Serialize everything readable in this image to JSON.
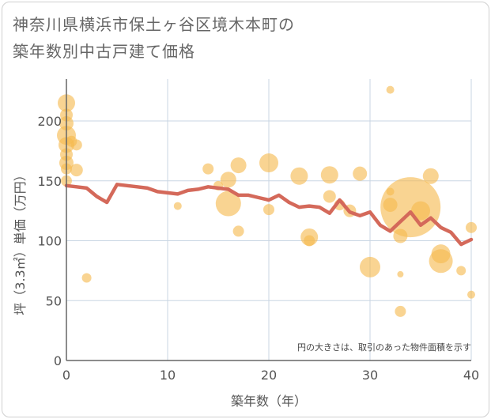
{
  "title_line1": "神奈川県横浜市保土ヶ谷区境木本町の",
  "title_line2": "築年数別中古戸建て価格",
  "chart_data": {
    "type": "scatter",
    "title": "神奈川県横浜市保土ヶ谷区境木本町の築年数別中古戸建て価格",
    "xlabel": "築年数（年）",
    "ylabel": "坪（3.3㎡）単価（万円）",
    "xlim": [
      0,
      40
    ],
    "ylim": [
      0,
      235
    ],
    "xticks": [
      0,
      10,
      20,
      30,
      40
    ],
    "yticks": [
      0,
      50,
      100,
      150,
      200
    ],
    "note": "円の大きさは、取引のあった物件面積を示す",
    "bubble_color": "#f5b94f",
    "line_color": "#d4695a",
    "bubbles": [
      {
        "x": 0,
        "y": 215,
        "s": 11
      },
      {
        "x": 0,
        "y": 205,
        "s": 8
      },
      {
        "x": 0,
        "y": 198,
        "s": 9
      },
      {
        "x": 0,
        "y": 188,
        "s": 12
      },
      {
        "x": 0,
        "y": 180,
        "s": 10
      },
      {
        "x": 0,
        "y": 172,
        "s": 8
      },
      {
        "x": 0,
        "y": 165,
        "s": 9
      },
      {
        "x": 0,
        "y": 160,
        "s": 7
      },
      {
        "x": 0,
        "y": 150,
        "s": 7
      },
      {
        "x": 0.5,
        "y": 183,
        "s": 7
      },
      {
        "x": 1,
        "y": 180,
        "s": 7
      },
      {
        "x": 1,
        "y": 159,
        "s": 8
      },
      {
        "x": 2,
        "y": 69,
        "s": 6
      },
      {
        "x": 11,
        "y": 129,
        "s": 5
      },
      {
        "x": 14,
        "y": 160,
        "s": 7
      },
      {
        "x": 15,
        "y": 146,
        "s": 6
      },
      {
        "x": 16,
        "y": 151,
        "s": 10
      },
      {
        "x": 16,
        "y": 131,
        "s": 16
      },
      {
        "x": 17,
        "y": 163,
        "s": 10
      },
      {
        "x": 17,
        "y": 108,
        "s": 7
      },
      {
        "x": 20,
        "y": 165,
        "s": 12
      },
      {
        "x": 20,
        "y": 126,
        "s": 7
      },
      {
        "x": 23,
        "y": 154,
        "s": 11
      },
      {
        "x": 24,
        "y": 103,
        "s": 11
      },
      {
        "x": 24,
        "y": 100,
        "s": 7
      },
      {
        "x": 26,
        "y": 155,
        "s": 11
      },
      {
        "x": 26,
        "y": 137,
        "s": 8
      },
      {
        "x": 27,
        "y": 130,
        "s": 7
      },
      {
        "x": 28,
        "y": 125,
        "s": 8
      },
      {
        "x": 29,
        "y": 156,
        "s": 9
      },
      {
        "x": 30,
        "y": 78,
        "s": 13
      },
      {
        "x": 32,
        "y": 226,
        "s": 5
      },
      {
        "x": 32,
        "y": 141,
        "s": 5
      },
      {
        "x": 32,
        "y": 130,
        "s": 9
      },
      {
        "x": 33,
        "y": 104,
        "s": 9
      },
      {
        "x": 33,
        "y": 72,
        "s": 4
      },
      {
        "x": 33,
        "y": 41,
        "s": 7
      },
      {
        "x": 34,
        "y": 128,
        "s": 38
      },
      {
        "x": 35,
        "y": 125,
        "s": 12
      },
      {
        "x": 36,
        "y": 154,
        "s": 10
      },
      {
        "x": 37,
        "y": 89,
        "s": 12
      },
      {
        "x": 37,
        "y": 83,
        "s": 15
      },
      {
        "x": 39,
        "y": 75,
        "s": 6
      },
      {
        "x": 40,
        "y": 111,
        "s": 7
      },
      {
        "x": 40,
        "y": 55,
        "s": 5
      }
    ],
    "line_x": [
      0,
      1,
      2,
      3,
      4,
      5,
      6,
      7,
      8,
      9,
      10,
      11,
      12,
      13,
      14,
      15,
      16,
      17,
      18,
      19,
      20,
      21,
      22,
      23,
      24,
      25,
      26,
      27,
      28,
      29,
      30,
      31,
      32,
      33,
      34,
      35,
      36,
      37,
      38,
      39,
      40
    ],
    "line_y": [
      146,
      145,
      144,
      137,
      132,
      147,
      146,
      145,
      144,
      141,
      140,
      139,
      142,
      143,
      145,
      144,
      143,
      138,
      138,
      136,
      134,
      138,
      132,
      128,
      129,
      128,
      123,
      134,
      124,
      121,
      124,
      113,
      108,
      116,
      124,
      113,
      119,
      111,
      107,
      97,
      101
    ]
  }
}
